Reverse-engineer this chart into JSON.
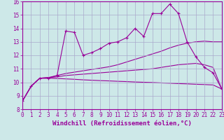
{
  "xlabel": "Windchill (Refroidissement éolien,°C)",
  "background_color": "#cde8e8",
  "line_color": "#990099",
  "xlim": [
    0,
    23
  ],
  "ylim": [
    8,
    16
  ],
  "yticks": [
    8,
    9,
    10,
    11,
    12,
    13,
    14,
    15,
    16
  ],
  "xticks": [
    0,
    1,
    2,
    3,
    4,
    5,
    6,
    7,
    8,
    9,
    10,
    11,
    12,
    13,
    14,
    15,
    16,
    17,
    18,
    19,
    20,
    21,
    22,
    23
  ],
  "jagged_x": [
    0,
    1,
    2,
    3,
    4,
    5,
    6,
    7,
    8,
    9,
    10,
    11,
    12,
    13,
    14,
    15,
    16,
    17,
    18,
    19,
    20,
    21,
    22,
    23
  ],
  "jagged_y": [
    8.6,
    9.7,
    10.3,
    10.3,
    10.5,
    13.8,
    13.7,
    12.0,
    12.2,
    12.5,
    12.9,
    13.0,
    13.3,
    14.0,
    13.4,
    15.1,
    15.1,
    15.8,
    15.1,
    13.0,
    11.9,
    11.1,
    10.7,
    9.5
  ],
  "curve1_x": [
    0,
    1,
    2,
    3,
    4,
    5,
    6,
    7,
    8,
    9,
    10,
    11,
    12,
    13,
    14,
    15,
    16,
    17,
    18,
    19,
    20,
    21,
    22,
    23
  ],
  "curve1_y": [
    8.6,
    9.7,
    10.3,
    10.35,
    10.5,
    10.65,
    10.75,
    10.85,
    10.95,
    11.05,
    11.15,
    11.3,
    11.5,
    11.7,
    11.9,
    12.1,
    12.3,
    12.55,
    12.75,
    12.9,
    13.0,
    13.05,
    13.0,
    13.0
  ],
  "curve2_x": [
    0,
    1,
    2,
    3,
    4,
    5,
    6,
    7,
    8,
    9,
    10,
    11,
    12,
    13,
    14,
    15,
    16,
    17,
    18,
    19,
    20,
    21,
    22,
    23
  ],
  "curve2_y": [
    8.6,
    9.7,
    10.3,
    10.35,
    10.4,
    10.5,
    10.55,
    10.6,
    10.65,
    10.7,
    10.75,
    10.8,
    10.85,
    10.9,
    10.95,
    11.0,
    11.1,
    11.2,
    11.3,
    11.35,
    11.4,
    11.3,
    11.1,
    9.5
  ],
  "curve3_x": [
    0,
    1,
    2,
    3,
    4,
    5,
    6,
    7,
    8,
    9,
    10,
    11,
    12,
    13,
    14,
    15,
    16,
    17,
    18,
    19,
    20,
    21,
    22,
    23
  ],
  "curve3_y": [
    8.6,
    9.7,
    10.3,
    10.3,
    10.28,
    10.25,
    10.22,
    10.18,
    10.15,
    10.12,
    10.1,
    10.07,
    10.05,
    10.02,
    10.0,
    9.98,
    9.95,
    9.93,
    9.9,
    9.88,
    9.85,
    9.83,
    9.8,
    9.5
  ],
  "grid_color": "#aaaacc",
  "label_fontsize": 6.5,
  "tick_fontsize": 5.5
}
